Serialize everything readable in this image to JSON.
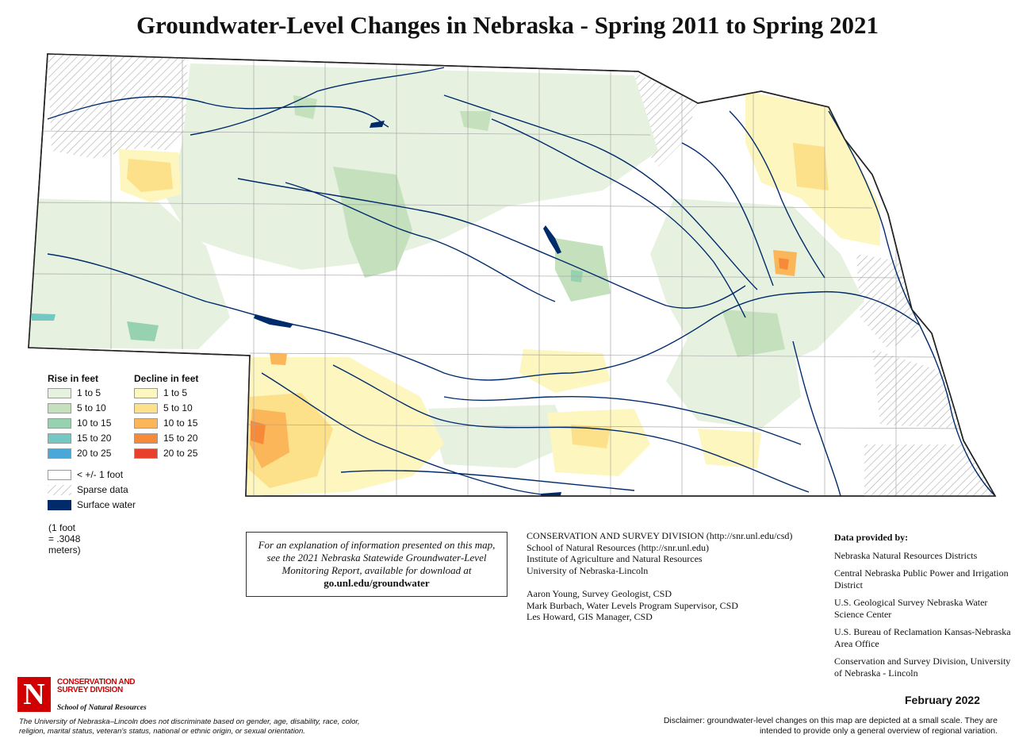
{
  "title": "Groundwater-Level Changes in Nebraska - Spring 2011 to Spring 2021",
  "legend": {
    "rise_header": "Rise in feet",
    "decline_header": "Decline in feet",
    "rise_classes": [
      {
        "label": "1 to 5",
        "color": "#e6f2df"
      },
      {
        "label": "5 to 10",
        "color": "#c4e0bd"
      },
      {
        "label": "10 to 15",
        "color": "#97d2b0"
      },
      {
        "label": "15 to 20",
        "color": "#74c8c4"
      },
      {
        "label": "20 to 25",
        "color": "#4aa8d8"
      }
    ],
    "decline_classes": [
      {
        "label": "1 to 5",
        "color": "#fdf6bf"
      },
      {
        "label": "5 to 10",
        "color": "#fde08a"
      },
      {
        "label": "10 to 15",
        "color": "#fbb65a"
      },
      {
        "label": "15 to 20",
        "color": "#f68a38"
      },
      {
        "label": "20 to 25",
        "color": "#e8402a"
      }
    ],
    "no_change_label": "< +/- 1 foot",
    "sparse_label": "Sparse data",
    "surface_water_label": "Surface water",
    "surface_water_color": "#002b6b",
    "unit_note": "(1 foot = .3048 meters)"
  },
  "info_box": {
    "text": "For an explanation of information presented on this map, see the 2021 Nebraska Statewide Groundwater-Level Monitoring Report, available for download at",
    "link": "go.unl.edu/groundwater"
  },
  "credits": {
    "org_lines": [
      "CONSERVATION AND SURVEY DIVISION (http://snr.unl.edu/csd)",
      "School of Natural Resources (http://snr.unl.edu)",
      "Institute of Agriculture and Natural Resources",
      "University of Nebraska-Lincoln"
    ],
    "people_lines": [
      "Aaron Young, Survey Geologist, CSD",
      "Mark Burbach, Water Levels Program Supervisor, CSD",
      "Les Howard, GIS Manager, CSD"
    ]
  },
  "data_provided": {
    "header": "Data provided by:",
    "entries": [
      "Nebraska Natural Resources Districts",
      "Central Nebraska Public Power and Irrigation District",
      "U.S. Geological Survey Nebraska Water Science Center",
      "U.S. Bureau of Reclamation Kansas-Nebraska Area Office",
      "Conservation and Survey Division, University of Nebraska - Lincoln"
    ]
  },
  "logo": {
    "letter": "N",
    "org": "CONSERVATION AND SURVEY DIVISION",
    "school": "School of Natural Resources",
    "brand_color": "#d00000"
  },
  "nondiscrimination": "The University of Nebraska–Lincoln does not discriminate based on gender, age, disability, race, color, religion, marital status, veteran's status, national or ethnic origin, or sexual orientation.",
  "date": "February 2022",
  "disclaimer": "Disclaimer: groundwater-level changes on this map are depicted at a small scale. They are intended to provide only a general overview of regional variation."
}
